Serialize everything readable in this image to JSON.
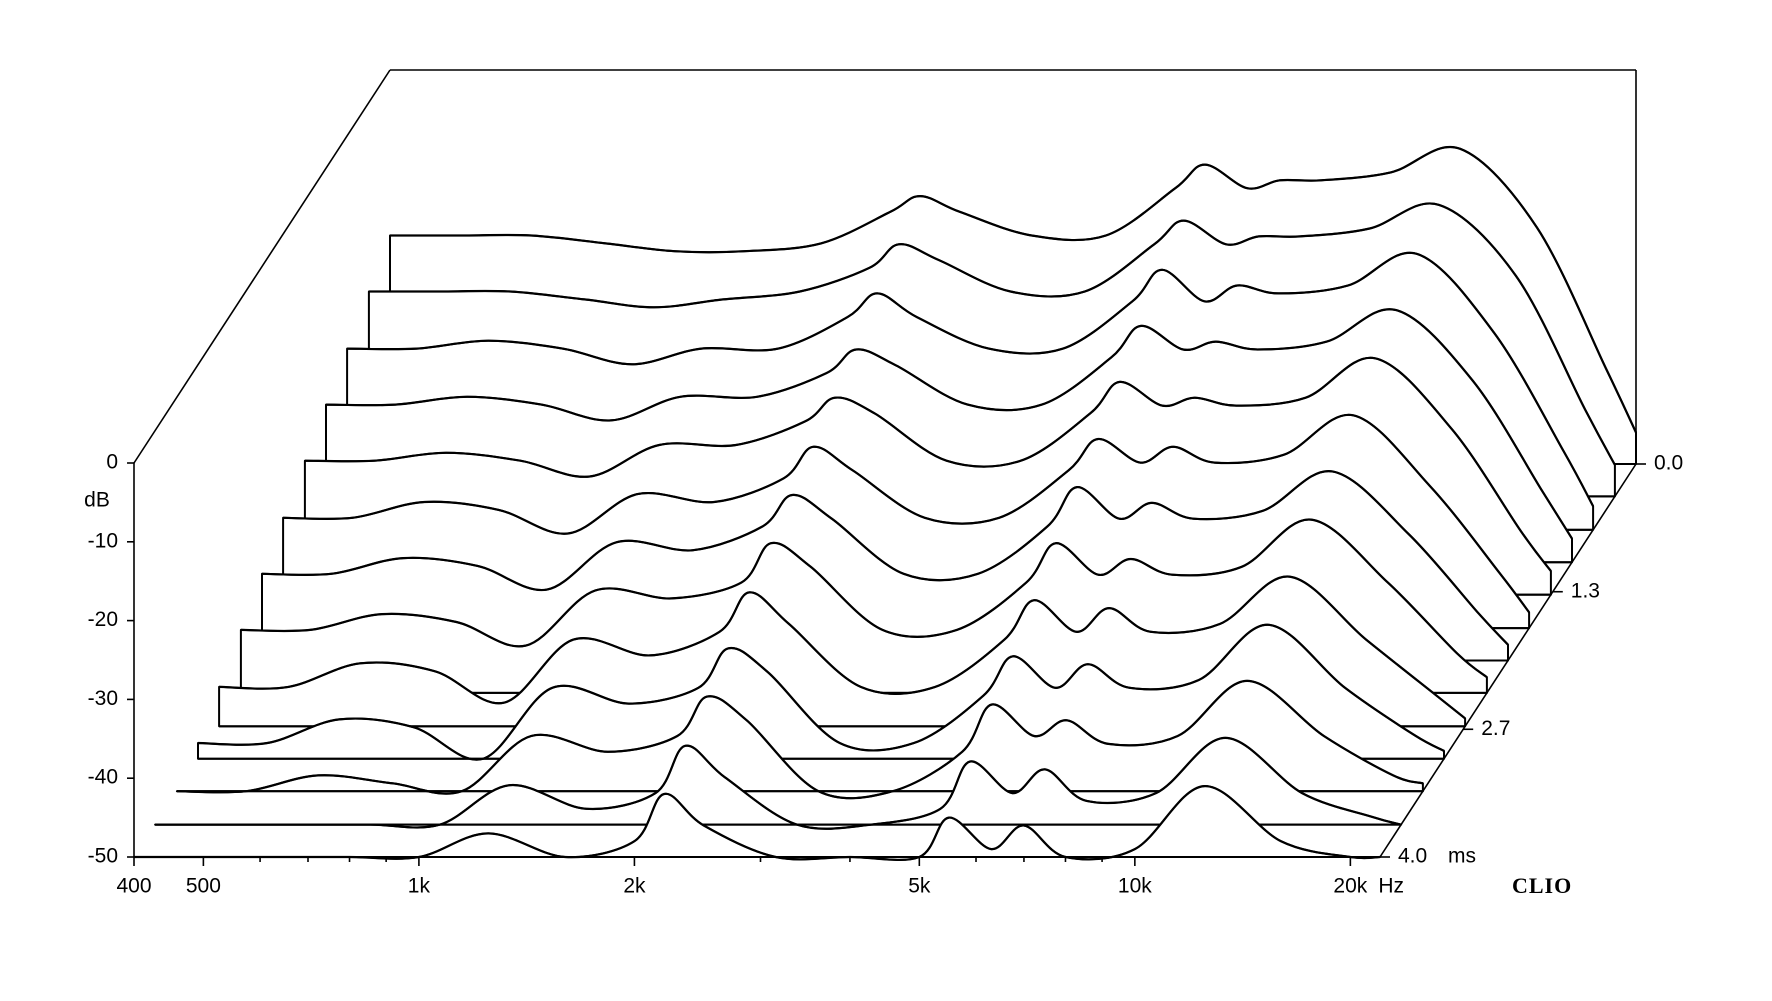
{
  "chart_data": {
    "type": "waterfall",
    "x": [
      400,
      500,
      630,
      800,
      1000,
      1250,
      1600,
      2000,
      2200,
      2500,
      3150,
      4000,
      5000,
      5500,
      6300,
      7000,
      8000,
      10000,
      12500,
      16000,
      20000,
      22000
    ],
    "xlim": [
      400,
      22000
    ],
    "log_x": true,
    "xticks": [
      400,
      500,
      {
        "value": 1000,
        "label": "1k"
      },
      {
        "value": 2000,
        "label": "2k"
      },
      {
        "value": 5000,
        "label": "5k"
      },
      {
        "value": 10000,
        "label": "10k"
      },
      {
        "value": 20000,
        "label": "20k"
      }
    ],
    "xminorticks": [
      600,
      700,
      800,
      900,
      3000,
      4000,
      6000,
      7000,
      8000,
      9000
    ],
    "x_unit": "Hz",
    "ylabel": "dB",
    "ylim": [
      -50,
      0
    ],
    "yticks": [
      -50,
      -40,
      -30,
      -20,
      -10,
      0
    ],
    "z": [
      0,
      0.33,
      0.67,
      1,
      1.33,
      1.67,
      2,
      2.33,
      2.67,
      3,
      3.33,
      3.67,
      4
    ],
    "zlim": [
      0,
      4
    ],
    "zticks": [
      {
        "value": 0,
        "label": "0.0"
      },
      1.3,
      2.7,
      {
        "value": 4,
        "label": "4.0"
      }
    ],
    "z_unit": "ms",
    "color": "#000000",
    "brand": "CLIO",
    "series": [
      {
        "values": [
          -21,
          -21,
          -21,
          -22,
          -23,
          -23,
          -22,
          -18,
          -16,
          -18,
          -21,
          -21,
          -15,
          -12,
          -15,
          -14,
          -14,
          -13,
          -10,
          -20,
          -38,
          -46
        ]
      },
      {
        "values": [
          -24,
          -24,
          -24,
          -25,
          -26,
          -25,
          -24,
          -21,
          -18,
          -20,
          -24,
          -24,
          -18,
          -15,
          -18,
          -17,
          -17,
          -16,
          -13,
          -22,
          -39,
          -46
        ]
      },
      {
        "values": [
          -27,
          -27,
          -26,
          -27,
          -29,
          -27,
          -27,
          -23,
          -20,
          -23,
          -27,
          -27,
          -21,
          -17,
          -21,
          -19,
          -20,
          -19,
          -15,
          -25,
          -40,
          -47
        ]
      },
      {
        "values": [
          -30,
          -30,
          -29,
          -30,
          -32,
          -29,
          -29,
          -26,
          -23,
          -25,
          -30,
          -30,
          -24,
          -20,
          -23,
          -22,
          -23,
          -22,
          -18,
          -27,
          -41,
          -47
        ]
      },
      {
        "values": [
          -33,
          -33,
          -32,
          -33,
          -35,
          -31,
          -31,
          -28,
          -25,
          -27,
          -33,
          -33,
          -27,
          -23,
          -26,
          -25,
          -26,
          -25,
          -20,
          -29,
          -42,
          -47
        ]
      },
      {
        "values": [
          -36,
          -36,
          -34,
          -35,
          -38,
          -33,
          -34,
          -31,
          -27,
          -30,
          -36,
          -36,
          -30,
          -26,
          -29,
          -27,
          -29,
          -28,
          -23,
          -32,
          -43,
          -48
        ]
      },
      {
        "values": [
          -39,
          -39,
          -37,
          -38,
          -41,
          -35,
          -36,
          -33,
          -29,
          -32,
          -39,
          -39,
          -33,
          -28,
          -32,
          -30,
          -32,
          -31,
          -26,
          -34,
          -44,
          -48
        ]
      },
      {
        "values": [
          -42,
          -42,
          -40,
          -41,
          -44,
          -37,
          -38,
          -36,
          -31,
          -34,
          -42,
          -42,
          -36,
          -31,
          -35,
          -33,
          -35,
          -34,
          -28,
          -36,
          -45,
          -48
        ]
      },
      {
        "values": [
          -45,
          -45,
          -42,
          -43,
          -47,
          -39,
          -41,
          -38,
          -33,
          -37,
          -45,
          -45,
          -39,
          -34,
          -38,
          -35,
          -38,
          -37,
          -31,
          -39,
          -46,
          -49
        ]
      },
      {
        "values": [
          -48,
          -48,
          -45,
          -46,
          -50,
          -41,
          -43,
          -41,
          -36,
          -39,
          -48,
          -48,
          -42,
          -37,
          -41,
          -38,
          -41,
          -40,
          -33,
          -41,
          -47,
          -49
        ]
      },
      {
        "values": [
          -50,
          -50,
          -48,
          -49,
          -50,
          -43,
          -45,
          -43,
          -38,
          -41,
          -50,
          -50,
          -45,
          -39,
          -43,
          -41,
          -44,
          -43,
          -36,
          -43,
          -48,
          -49
        ]
      },
      {
        "values": [
          -50,
          -50,
          -50,
          -50,
          -50,
          -45,
          -48,
          -46,
          -40,
          -44,
          -50,
          -50,
          -48,
          -42,
          -46,
          -43,
          -47,
          -46,
          -39,
          -46,
          -49,
          -50
        ]
      },
      {
        "values": [
          -50,
          -50,
          -50,
          -50,
          -50,
          -47,
          -50,
          -48,
          -42,
          -46,
          -50,
          -50,
          -50,
          -45,
          -49,
          -46,
          -50,
          -49,
          -41,
          -48,
          -50,
          -50
        ]
      }
    ]
  }
}
